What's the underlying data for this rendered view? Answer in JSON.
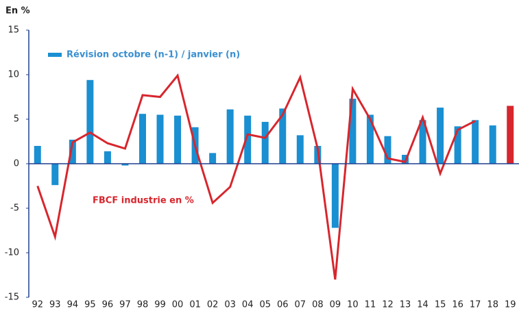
{
  "chart_data": {
    "type": "bar_line",
    "y_unit_label": "En %",
    "categories": [
      "92",
      "93",
      "94",
      "95",
      "96",
      "97",
      "98",
      "99",
      "00",
      "01",
      "02",
      "03",
      "04",
      "05",
      "06",
      "07",
      "08",
      "09",
      "10",
      "11",
      "12",
      "13",
      "14",
      "15",
      "16",
      "17",
      "18",
      "19"
    ],
    "series": [
      {
        "name": "Révision octobre (n-1) / janvier (n)",
        "kind": "bar",
        "color": "#1a8fd1",
        "colors": [
          "#1a8fd1",
          "#1a8fd1",
          "#1a8fd1",
          "#1a8fd1",
          "#1a8fd1",
          "#1a8fd1",
          "#1a8fd1",
          "#1a8fd1",
          "#1a8fd1",
          "#1a8fd1",
          "#1a8fd1",
          "#1a8fd1",
          "#1a8fd1",
          "#1a8fd1",
          "#1a8fd1",
          "#1a8fd1",
          "#1a8fd1",
          "#1a8fd1",
          "#1a8fd1",
          "#1a8fd1",
          "#1a8fd1",
          "#1a8fd1",
          "#1a8fd1",
          "#1a8fd1",
          "#1a8fd1",
          "#1a8fd1",
          "#1a8fd1",
          "#d7262d"
        ],
        "values": [
          2.0,
          -2.4,
          2.7,
          9.4,
          1.4,
          -0.2,
          5.6,
          5.5,
          5.4,
          4.1,
          1.2,
          6.1,
          5.4,
          4.7,
          6.2,
          3.2,
          2.0,
          -7.2,
          7.3,
          5.5,
          3.1,
          1.0,
          4.9,
          6.3,
          4.2,
          4.9,
          4.3,
          6.5
        ]
      },
      {
        "name": "FBCF industrie en %",
        "kind": "line",
        "color": "#d7262d",
        "values": [
          -2.5,
          -8.2,
          2.4,
          3.5,
          2.3,
          1.7,
          7.7,
          7.5,
          9.9,
          2.0,
          -4.4,
          -2.6,
          3.3,
          2.9,
          5.5,
          9.7,
          1.7,
          -13.0,
          8.4,
          5.0,
          0.6,
          0.2,
          5.2,
          -1.1,
          3.8,
          4.8,
          null,
          null
        ]
      }
    ],
    "ylim": [
      -15,
      15
    ],
    "yticks": [
      -15,
      -10,
      -5,
      0,
      5,
      10,
      15
    ],
    "grid": false
  }
}
